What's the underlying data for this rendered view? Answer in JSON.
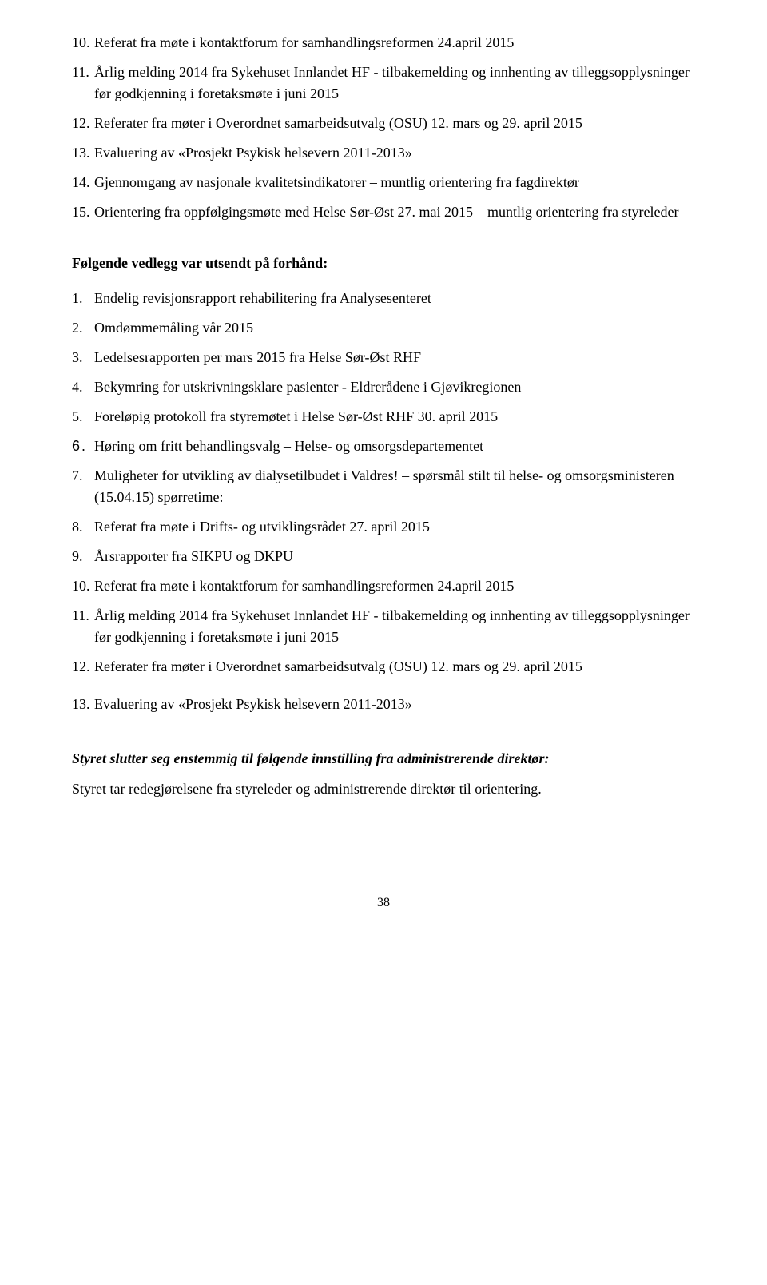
{
  "topNumberedList": [
    {
      "num": "10.",
      "text": "Referat fra møte i kontaktforum for samhandlingsreformen 24.april 2015"
    },
    {
      "num": "11.",
      "text": "Årlig melding 2014 fra Sykehuset Innlandet HF - tilbakemelding og innhenting av tilleggsopplysninger før godkjenning i foretaksmøte i juni 2015"
    },
    {
      "num": "12.",
      "text": "Referater fra møter i Overordnet samarbeidsutvalg (OSU) 12. mars og 29. april 2015"
    },
    {
      "num": "13.",
      "text": "Evaluering av «Prosjekt Psykisk helsevern 2011-2013»"
    },
    {
      "num": "14.",
      "text": "Gjennomgang av nasjonale kvalitetsindikatorer – muntlig orientering fra fagdirektør"
    },
    {
      "num": "15.",
      "text": "Orientering fra oppfølgingsmøte med Helse Sør-Øst 27. mai 2015 – muntlig orientering fra styreleder"
    }
  ],
  "sectionHeading": "Følgende vedlegg var utsendt på forhånd:",
  "middleNumberedList": [
    {
      "num": "1.",
      "text": "Endelig revisjonsrapport rehabilitering fra Analysesenteret"
    },
    {
      "num": "2.",
      "text": "Omdømmemåling vår 2015"
    },
    {
      "num": "3.",
      "text": "Ledelsesrapporten per mars 2015 fra Helse Sør-Øst RHF"
    },
    {
      "num": "4.",
      "text": "Bekymring for utskrivningsklare pasienter - Eldrerådene i Gjøvikregionen"
    },
    {
      "num": "5.",
      "text": "Foreløpig protokoll fra styremøtet i Helse Sør-Øst RHF 30. april 2015"
    },
    {
      "num": "6.",
      "text": "Høring om fritt behandlingsvalg – Helse- og omsorgsdepartementet",
      "sansNum": true
    },
    {
      "num": "7.",
      "text": "Muligheter for utvikling av dialysetilbudet i Valdres! – spørsmål stilt til helse- og omsorgsministeren (15.04.15) spørretime:"
    },
    {
      "num": "8.",
      "text": "Referat fra møte i Drifts- og utviklingsrådet 27. april 2015"
    },
    {
      "num": "9.",
      "text": "Årsrapporter fra SIKPU og DKPU"
    },
    {
      "num": "10.",
      "text": "Referat fra møte i kontaktforum for samhandlingsreformen 24.april 2015"
    },
    {
      "num": "11.",
      "text": "Årlig melding 2014 fra Sykehuset Innlandet HF - tilbakemelding og innhenting av tilleggsopplysninger før godkjenning i foretaksmøte i juni 2015"
    },
    {
      "num": "12.",
      "text": "Referater fra møter i Overordnet samarbeidsutvalg (OSU) 12. mars og 29. april 2015"
    },
    {
      "num": "13.",
      "text": "Evaluering av «Prosjekt Psykisk helsevern 2011-2013»",
      "spaced": true
    }
  ],
  "closingHeading": "Styret slutter seg enstemmig til følgende innstilling fra administrerende direktør:",
  "closingText": "Styret tar redegjørelsene fra styreleder og administrerende direktør til orientering.",
  "pageNumber": "38"
}
